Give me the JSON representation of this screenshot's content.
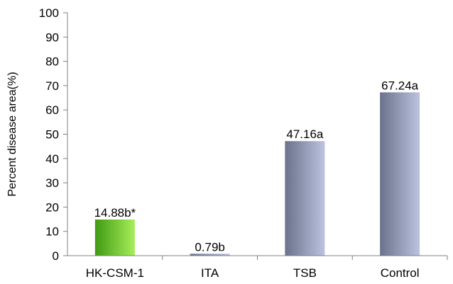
{
  "chart_data": {
    "type": "bar",
    "ylabel": "Percent disease area(%)",
    "ylim": [
      0,
      100
    ],
    "yticks": [
      0,
      10,
      20,
      30,
      40,
      50,
      60,
      70,
      80,
      90,
      100
    ],
    "categories": [
      "HK-CSM-1",
      "ITA",
      "TSB",
      "Control"
    ],
    "values": [
      14.88,
      0.79,
      47.16,
      67.24
    ],
    "data_labels": [
      "14.88b*",
      "0.79b",
      "47.16a",
      "67.24a"
    ],
    "colors": {
      "highlight_light": "#a8ee5a",
      "highlight_dark": "#3f9a12",
      "bar_light": "#bcc3de",
      "bar_dark": "#6a728c"
    },
    "grid": false,
    "legend": "none"
  }
}
